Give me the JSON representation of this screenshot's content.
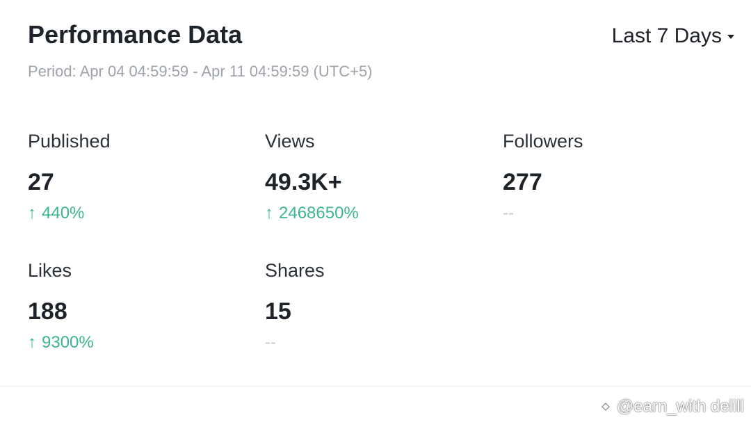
{
  "header": {
    "title": "Performance Data",
    "range_label": "Last 7 Days",
    "period": "Period: Apr 04 04:59:59 - Apr 11 04:59:59 (UTC+5)"
  },
  "metrics": [
    {
      "label": "Published",
      "value": "27",
      "change": "440%",
      "trend": "up"
    },
    {
      "label": "Views",
      "value": "49.3K+",
      "change": "2468650%",
      "trend": "up"
    },
    {
      "label": "Followers",
      "value": "277",
      "change": "--",
      "trend": "none"
    },
    {
      "label": "Likes",
      "value": "188",
      "change": "9300%",
      "trend": "up"
    },
    {
      "label": "Shares",
      "value": "15",
      "change": "--",
      "trend": "none"
    }
  ],
  "icons": {
    "up_arrow": "↑",
    "dropdown": "caret-down-icon"
  },
  "colors": {
    "positive": "#3db592",
    "neutral": "#c5c8cc",
    "text_primary": "#1e2329",
    "text_secondary": "#9ea3ab"
  },
  "watermark": {
    "text": "@earn_with delill"
  }
}
